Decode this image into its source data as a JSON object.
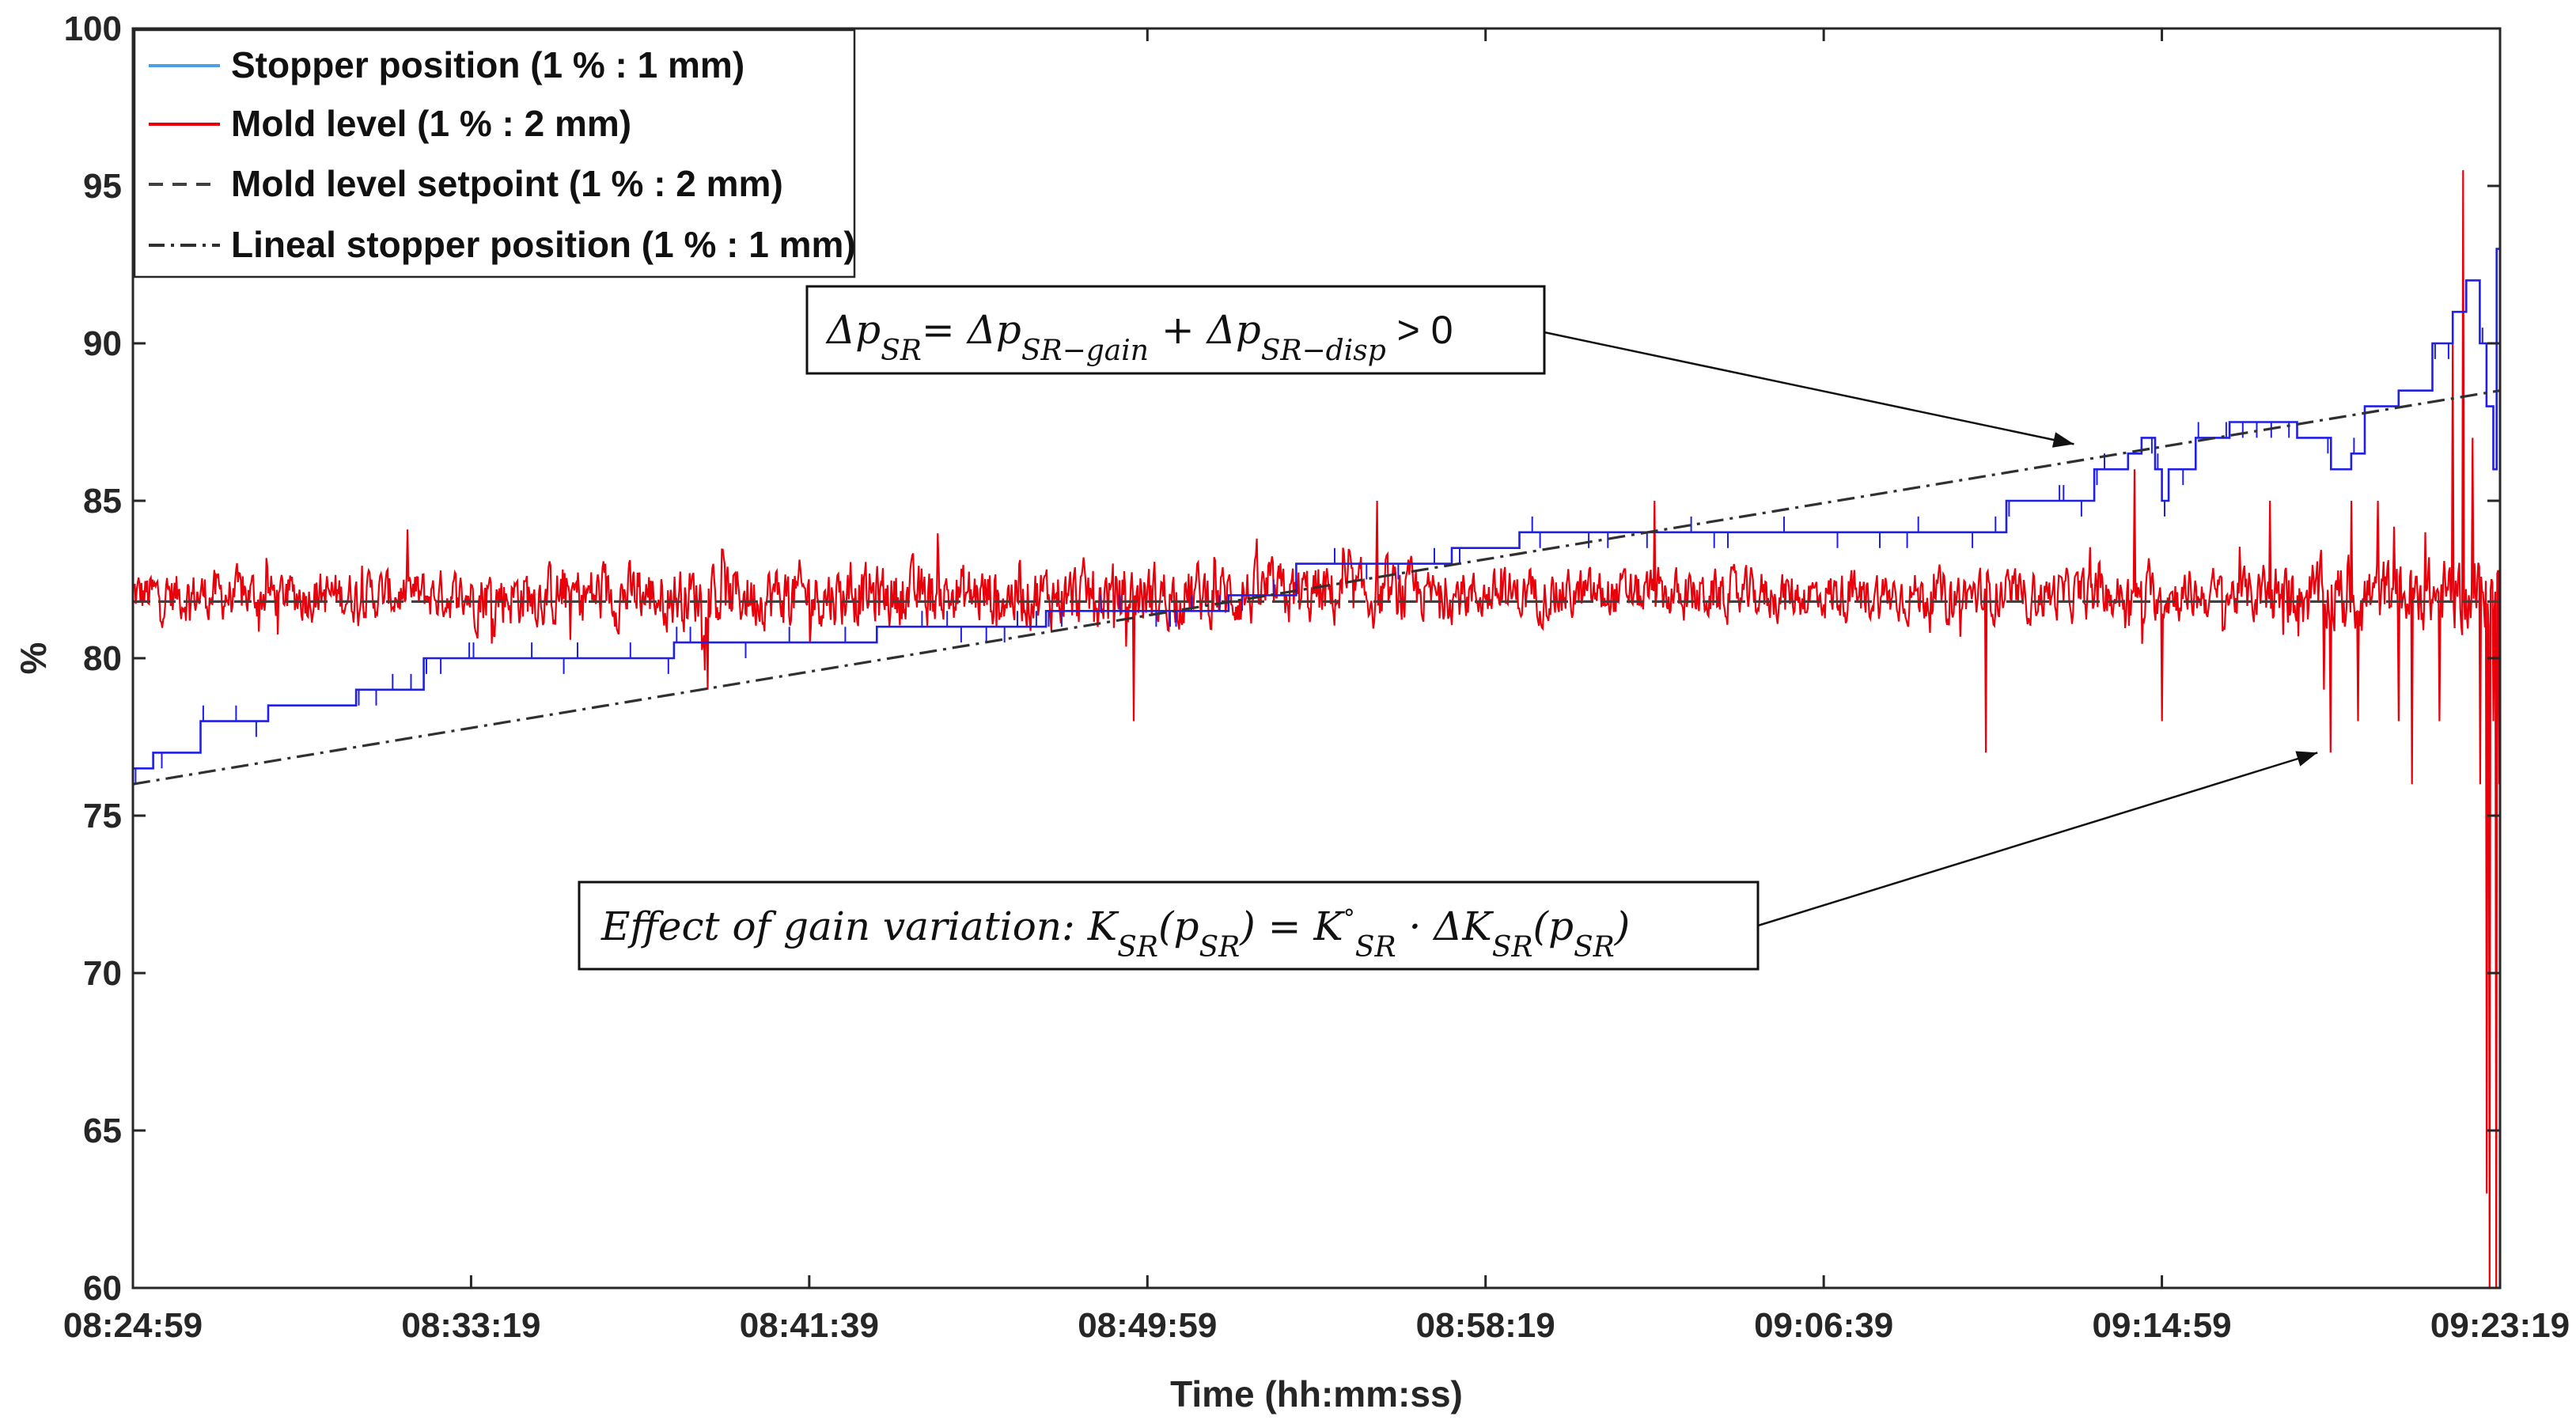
{
  "chart_data": {
    "type": "line",
    "title": "",
    "xlabel": "Time (hh:mm:ss)",
    "ylabel": "%",
    "ylim": [
      60,
      100
    ],
    "yticks": [
      60,
      65,
      70,
      75,
      80,
      85,
      90,
      95,
      100
    ],
    "xlim_seconds": [
      0,
      3500
    ],
    "xticks": [
      {
        "t": 0,
        "label": "08:24:59"
      },
      {
        "t": 500,
        "label": "08:33:19"
      },
      {
        "t": 1000,
        "label": "08:41:39"
      },
      {
        "t": 1500,
        "label": "08:49:59"
      },
      {
        "t": 2000,
        "label": "08:58:19"
      },
      {
        "t": 2500,
        "label": "09:06:39"
      },
      {
        "t": 3000,
        "label": "09:14:59"
      },
      {
        "t": 3500,
        "label": "09:23:19"
      }
    ],
    "legend_position": "top-left",
    "series": [
      {
        "name": "Stopper position (1 % : 1 mm)",
        "color": "#1f1fe6",
        "style": "step",
        "points": [
          [
            0,
            76.5
          ],
          [
            30,
            77
          ],
          [
            100,
            78
          ],
          [
            200,
            78.5
          ],
          [
            330,
            79
          ],
          [
            430,
            80
          ],
          [
            600,
            80
          ],
          [
            800,
            80.5
          ],
          [
            1000,
            80.5
          ],
          [
            1100,
            81
          ],
          [
            1200,
            81
          ],
          [
            1350,
            81.5
          ],
          [
            1500,
            81.5
          ],
          [
            1620,
            82
          ],
          [
            1720,
            83
          ],
          [
            1820,
            83
          ],
          [
            1950,
            83.5
          ],
          [
            2050,
            84
          ],
          [
            2200,
            84
          ],
          [
            2300,
            84
          ],
          [
            2400,
            84
          ],
          [
            2650,
            84
          ],
          [
            2750,
            84
          ],
          [
            2770,
            85
          ],
          [
            2900,
            86
          ],
          [
            2950,
            86.5
          ],
          [
            2970,
            87
          ],
          [
            2990,
            86
          ],
          [
            3000,
            85
          ],
          [
            3010,
            86
          ],
          [
            3050,
            87
          ],
          [
            3100,
            87.5
          ],
          [
            3200,
            87
          ],
          [
            3250,
            86
          ],
          [
            3280,
            86.5
          ],
          [
            3300,
            88
          ],
          [
            3350,
            88.5
          ],
          [
            3400,
            90
          ],
          [
            3430,
            91
          ],
          [
            3450,
            92
          ],
          [
            3470,
            90
          ],
          [
            3480,
            88
          ],
          [
            3490,
            86
          ],
          [
            3495,
            93
          ],
          [
            3500,
            95
          ]
        ]
      },
      {
        "name": "Mold level (1 % : 2 mm)",
        "color": "#e8000b",
        "style": "noisy",
        "mean": 82,
        "spikes": [
          [
            850,
            79
          ],
          [
            1480,
            78
          ],
          [
            1840,
            85
          ],
          [
            2250,
            85
          ],
          [
            2740,
            77
          ],
          [
            2960,
            86
          ],
          [
            3000,
            78
          ],
          [
            3160,
            85
          ],
          [
            3200,
            82
          ],
          [
            3240,
            79
          ],
          [
            3250,
            77
          ],
          [
            3270,
            81
          ],
          [
            3280,
            85
          ],
          [
            3290,
            78
          ],
          [
            3320,
            85
          ],
          [
            3350,
            78
          ],
          [
            3370,
            76
          ],
          [
            3390,
            84
          ],
          [
            3410,
            78
          ],
          [
            3430,
            90
          ],
          [
            3445,
            95.5
          ],
          [
            3460,
            87
          ],
          [
            3470,
            76
          ],
          [
            3480,
            63
          ],
          [
            3485,
            60
          ],
          [
            3490,
            78
          ],
          [
            3495,
            60
          ],
          [
            3500,
            76
          ]
        ]
      },
      {
        "name": "Mold level setpoint (1 % : 2 mm)",
        "color": "#404040",
        "style": "dashed",
        "points": [
          [
            0,
            81.8
          ],
          [
            3500,
            81.8
          ]
        ]
      },
      {
        "name": "Lineal stopper position (1 % : 1 mm)",
        "color": "#303030",
        "style": "dashdot",
        "points": [
          [
            0,
            76
          ],
          [
            3500,
            88.5
          ]
        ]
      }
    ],
    "annotations": [
      {
        "text": "Δp<sub>SR</sub> = Δp<sub>SR−gain</sub> + Δp<sub>SR−disp</sub> > 0",
        "plain": "ΔpSR= ΔpSR−gain + ΔpSR−disp > 0",
        "arrow_to": [
          2870,
          86.8
        ]
      },
      {
        "text": "Effect of gain variation: K_SR(p_SR) = K°_SR · ΔK_SR(p_SR)",
        "arrow_to": [
          3230,
          77
        ]
      }
    ]
  },
  "annotation_labels": {
    "a1_part1": "Δp",
    "a1_sub1": "SR",
    "a1_part2": "= Δp",
    "a1_sub2": "SR−gain",
    "a1_part3": " + Δp",
    "a1_sub3": "SR−disp",
    "a1_part4": " > 0",
    "a2_part1": "Effect of gain variation: K",
    "a2_sub1": "SR",
    "a2_part2": "(p",
    "a2_sub2": "SR",
    "a2_part3": ") = K",
    "a2_sup": "°",
    "a2_sub3": "SR",
    "a2_part4": " · ΔK",
    "a2_sub4": "SR",
    "a2_part5": "(p",
    "a2_sub5": "SR",
    "a2_part6": ")"
  }
}
